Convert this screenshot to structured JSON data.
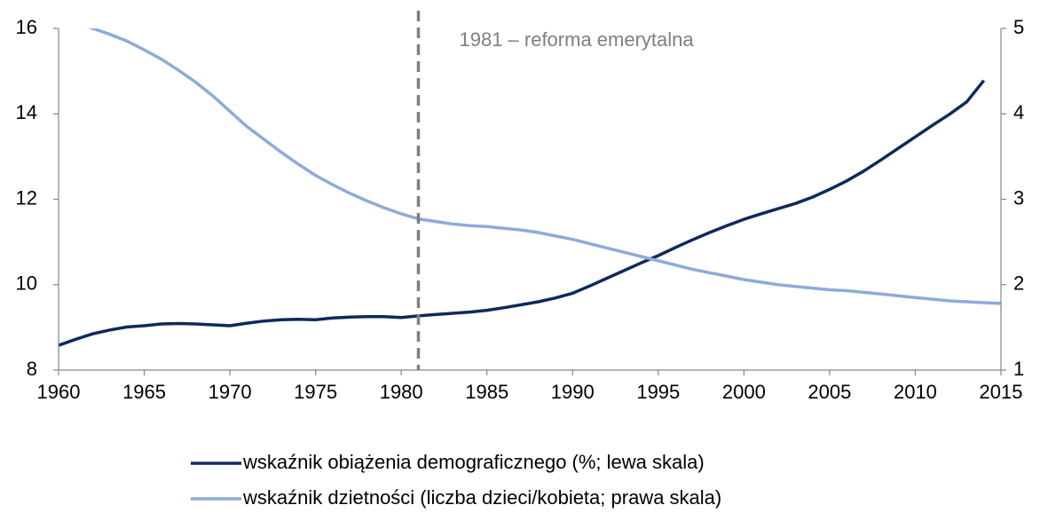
{
  "chart_data": {
    "type": "line",
    "annotation": {
      "text": "1981 – reforma emerytalna",
      "x": 1981
    },
    "x": [
      1960,
      1961,
      1962,
      1963,
      1964,
      1965,
      1966,
      1967,
      1968,
      1969,
      1970,
      1971,
      1972,
      1973,
      1974,
      1975,
      1976,
      1977,
      1978,
      1979,
      1980,
      1981,
      1982,
      1983,
      1984,
      1985,
      1986,
      1987,
      1988,
      1989,
      1990,
      1991,
      1992,
      1993,
      1994,
      1995,
      1996,
      1997,
      1998,
      1999,
      2000,
      2001,
      2002,
      2003,
      2004,
      2005,
      2006,
      2007,
      2008,
      2009,
      2010,
      2011,
      2012,
      2013,
      2014,
      2015
    ],
    "series": [
      {
        "name": "wskaźnik obiążenia demograficznego (%; lewa skala)",
        "color": "#0e2a5c",
        "axis": "y",
        "values": [
          8.58,
          8.72,
          8.85,
          8.94,
          9.01,
          9.04,
          9.08,
          9.09,
          9.08,
          9.06,
          9.04,
          9.1,
          9.15,
          9.18,
          9.19,
          9.18,
          9.22,
          9.24,
          9.25,
          9.25,
          9.23,
          9.27,
          9.3,
          9.33,
          9.36,
          9.4,
          9.46,
          9.53,
          9.6,
          9.69,
          9.8,
          9.97,
          10.15,
          10.33,
          10.51,
          10.68,
          10.87,
          11.05,
          11.22,
          11.38,
          11.53,
          11.66,
          11.78,
          11.9,
          12.05,
          12.23,
          12.43,
          12.66,
          12.92,
          13.19,
          13.46,
          13.73,
          13.99,
          14.28,
          14.78,
          null
        ]
      },
      {
        "name": "wskaźnik dzietności (liczba dzieci/kobieta; prawa skala)",
        "color": "#8eaadb",
        "axis": "y2",
        "values": [
          5.15,
          5.07,
          5.0,
          4.93,
          4.85,
          4.75,
          4.64,
          4.51,
          4.37,
          4.21,
          4.03,
          3.85,
          3.7,
          3.55,
          3.41,
          3.28,
          3.17,
          3.07,
          2.98,
          2.9,
          2.83,
          2.77,
          2.74,
          2.71,
          2.69,
          2.68,
          2.66,
          2.64,
          2.61,
          2.57,
          2.53,
          2.48,
          2.43,
          2.38,
          2.33,
          2.28,
          2.23,
          2.18,
          2.14,
          2.1,
          2.06,
          2.03,
          2.0,
          1.98,
          1.96,
          1.94,
          1.93,
          1.91,
          1.89,
          1.87,
          1.85,
          1.83,
          1.81,
          1.8,
          1.79,
          1.78
        ]
      }
    ],
    "xlim": [
      1960,
      2015
    ],
    "xticks": [
      1960,
      1965,
      1970,
      1975,
      1980,
      1985,
      1990,
      1995,
      2000,
      2005,
      2010,
      2015
    ],
    "ylim": [
      8,
      16
    ],
    "yticks": [
      8,
      10,
      12,
      14,
      16
    ],
    "y2lim": [
      1,
      5
    ],
    "y2ticks": [
      1,
      2,
      3,
      4,
      5
    ],
    "legend": "bottom",
    "grid": false
  }
}
